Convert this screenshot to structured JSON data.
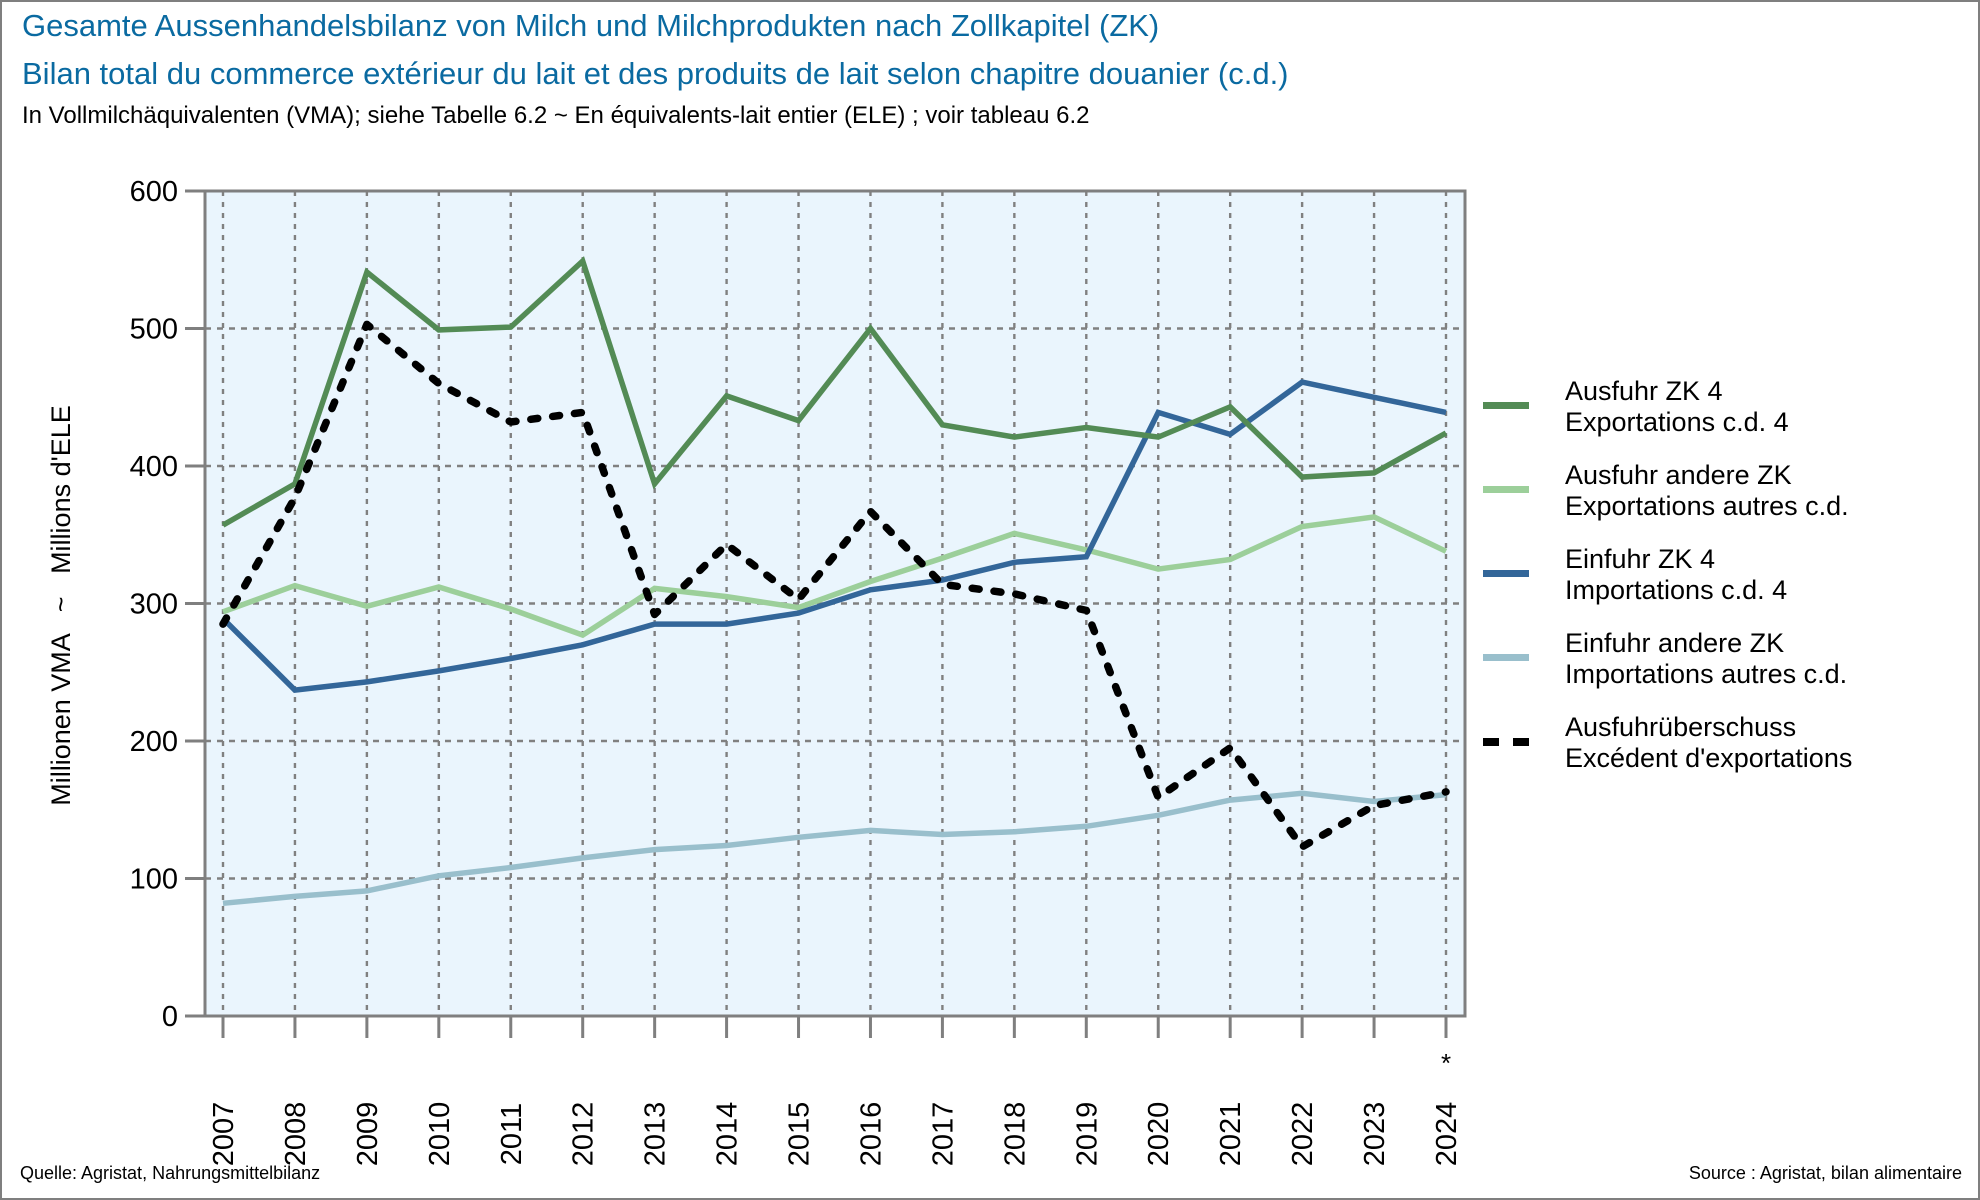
{
  "header": {
    "title_de": "Gesamte Aussenhandelsbilanz von Milch und Milchprodukten nach Zollkapitel (ZK)",
    "title_fr": "Bilan total du commerce extérieur du lait et des produits de lait selon chapitre douanier (c.d.)",
    "subtitle": "In Vollmilchäquivalenten (VMA); siehe Tabelle 6.2   ~   En équivalents-lait entier (ELE) ; voir tableau 6.2"
  },
  "footer": {
    "source_de": "Quelle: Agristat, Nahrungsmittelbilanz",
    "source_fr": "Source : Agristat, bilan alimentaire"
  },
  "chart_data": {
    "type": "line",
    "title": "Gesamte Aussenhandelsbilanz von Milch und Milchprodukten nach Zollkapitel (ZK)",
    "xlabel": "",
    "ylabel": "Millionen VMA   ~   Millions d'ELE",
    "ylim": [
      0,
      600
    ],
    "yticks": [
      "0",
      "100",
      "200",
      "300",
      "400",
      "500",
      "600"
    ],
    "grid": true,
    "legend_position": "right",
    "categories": [
      "2007",
      "2008",
      "2009",
      "2010",
      "2011",
      "2012",
      "2013",
      "2014",
      "2015",
      "2016",
      "2017",
      "2018",
      "2019",
      "2020",
      "2021",
      "2022",
      "2023",
      "2024"
    ],
    "category_annotations": {
      "2024": "*"
    },
    "series": [
      {
        "name_de": "Ausfuhr ZK 4",
        "name_fr": "Exportations c.d. 4",
        "color": "#538b55",
        "style": "solid",
        "values": [
          357,
          387,
          541,
          499,
          501,
          549,
          387,
          451,
          433,
          500,
          430,
          421,
          428,
          421,
          443,
          392,
          395,
          424
        ]
      },
      {
        "name_de": "Ausfuhr andere ZK",
        "name_fr": "Exportations autres c.d.",
        "color": "#9ccf9a",
        "style": "solid",
        "values": [
          294,
          313,
          298,
          312,
          296,
          277,
          311,
          305,
          297,
          316,
          333,
          351,
          339,
          325,
          332,
          356,
          363,
          338
        ]
      },
      {
        "name_de": "Einfuhr ZK 4",
        "name_fr": "Importations c.d. 4",
        "color": "#336699",
        "style": "solid",
        "values": [
          289,
          237,
          243,
          251,
          260,
          270,
          285,
          285,
          293,
          310,
          317,
          330,
          334,
          439,
          423,
          461,
          450,
          439
        ]
      },
      {
        "name_de": "Einfuhr andere ZK",
        "name_fr": "Importations autres c.d.",
        "color": "#99bfcc",
        "style": "solid",
        "values": [
          82,
          87,
          91,
          102,
          108,
          115,
          121,
          124,
          130,
          135,
          132,
          134,
          138,
          146,
          157,
          162,
          156,
          161
        ]
      },
      {
        "name_de": "Ausfuhrüberschuss",
        "name_fr": "Excédent d'exportations",
        "color": "#000000",
        "style": "dashed",
        "values": [
          285,
          377,
          503,
          460,
          432,
          439,
          292,
          343,
          303,
          367,
          314,
          307,
          295,
          159,
          195,
          123,
          153,
          163
        ]
      }
    ]
  },
  "colors": {
    "title": "#0a6aa1",
    "plot_background": "#eaf5fd",
    "axis": "#7f7f7f",
    "grid": "#808080"
  }
}
